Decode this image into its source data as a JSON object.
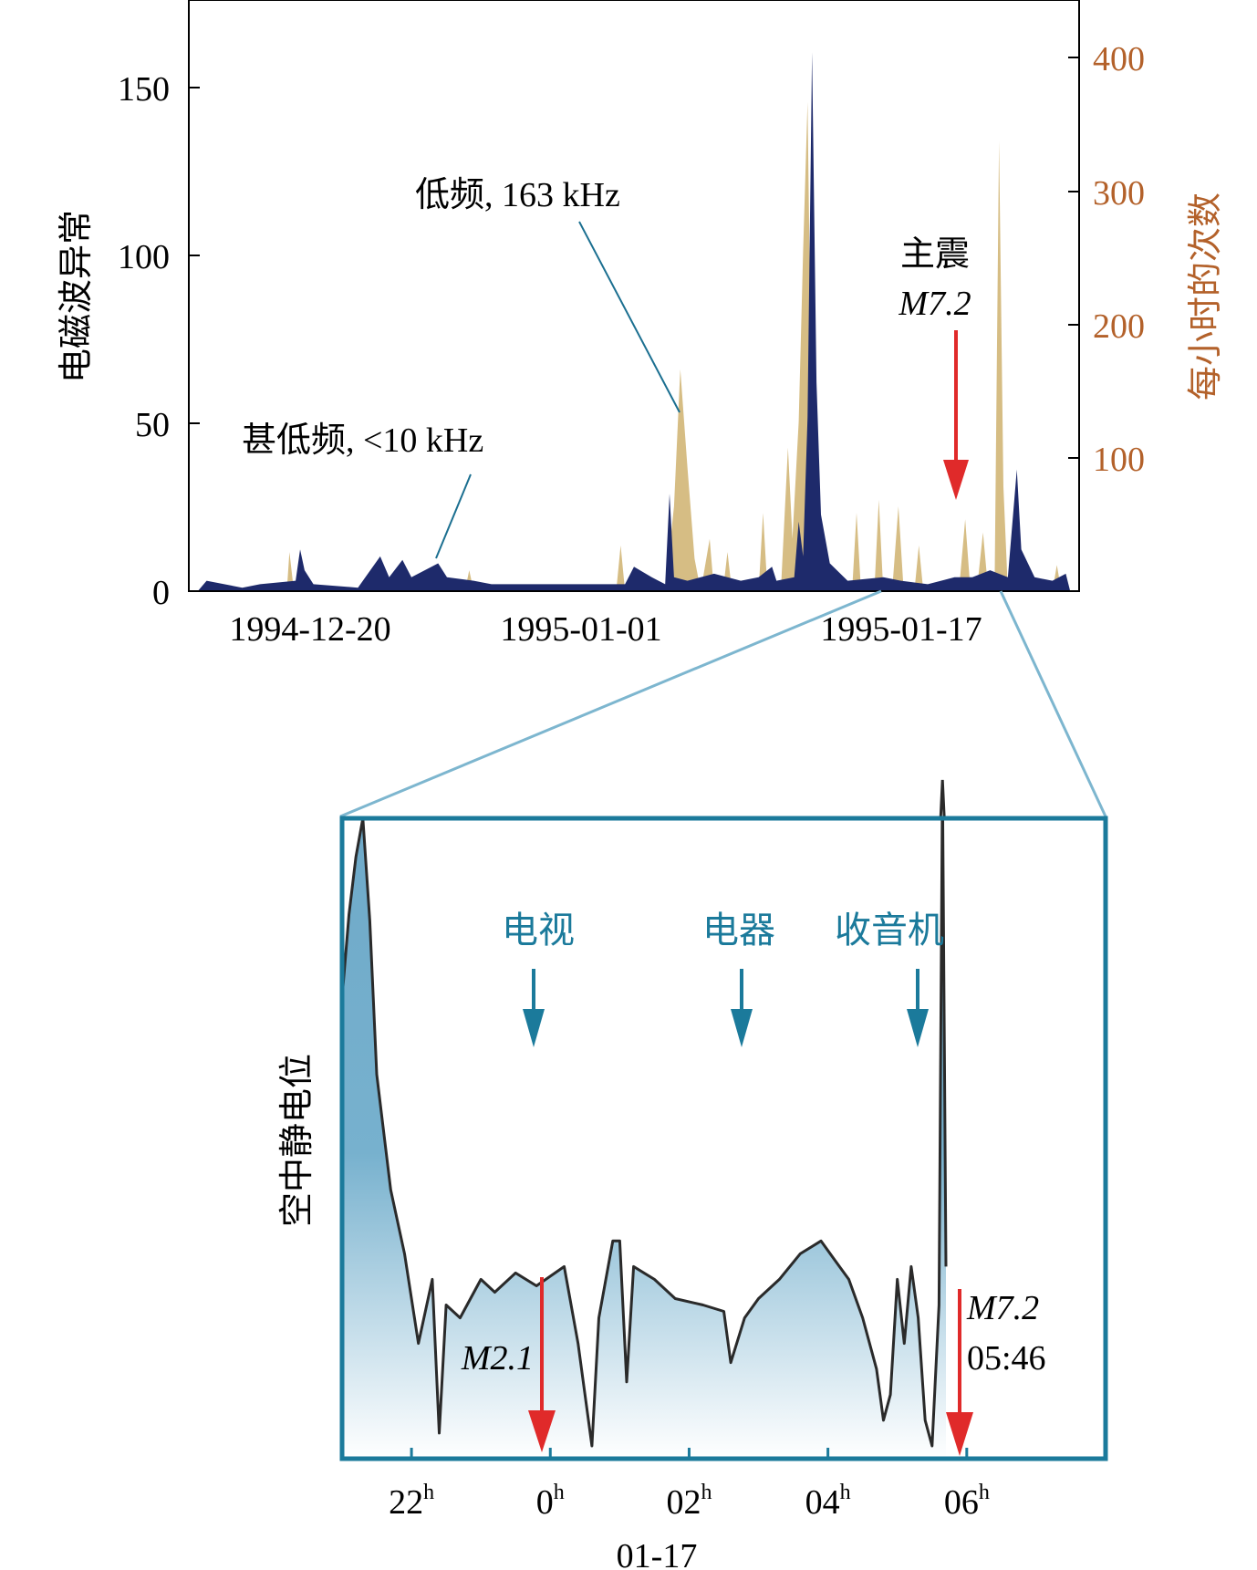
{
  "chart_data": [
    {
      "type": "area",
      "y_left": {
        "label": "电磁波异常",
        "ticks": [
          0,
          50,
          100,
          150
        ],
        "range": [
          0,
          170
        ]
      },
      "y_right": {
        "label": "每小时的次数",
        "ticks": [
          100,
          200,
          300,
          400
        ],
        "range": [
          0,
          453
        ]
      },
      "x_ticks": [
        {
          "label": "1994-12-20",
          "pos": 0.14
        },
        {
          "label": "1995-01-01",
          "pos": 0.45
        },
        {
          "label": "1995-01-17",
          "pos": 0.8
        }
      ],
      "series": [
        {
          "name": "低频, 163 kHz",
          "axis": "right",
          "color": "#d6bd84",
          "points": [
            [
              0.01,
              0
            ],
            [
              0.11,
              0
            ],
            [
              0.113,
              30
            ],
            [
              0.118,
              0
            ],
            [
              0.21,
              0
            ],
            [
              0.215,
              15
            ],
            [
              0.22,
              0
            ],
            [
              0.31,
              0
            ],
            [
              0.315,
              16
            ],
            [
              0.32,
              0
            ],
            [
              0.48,
              0
            ],
            [
              0.485,
              35
            ],
            [
              0.49,
              0
            ],
            [
              0.535,
              0
            ],
            [
              0.545,
              65
            ],
            [
              0.552,
              170
            ],
            [
              0.56,
              95
            ],
            [
              0.568,
              25
            ],
            [
              0.575,
              0
            ],
            [
              0.585,
              40
            ],
            [
              0.59,
              0
            ],
            [
              0.6,
              0
            ],
            [
              0.605,
              30
            ],
            [
              0.61,
              0
            ],
            [
              0.64,
              0
            ],
            [
              0.645,
              60
            ],
            [
              0.65,
              0
            ],
            [
              0.665,
              0
            ],
            [
              0.673,
              110
            ],
            [
              0.678,
              40
            ],
            [
              0.685,
              130
            ],
            [
              0.69,
              260
            ],
            [
              0.695,
              375
            ],
            [
              0.7,
              100
            ],
            [
              0.705,
              0
            ],
            [
              0.745,
              0
            ],
            [
              0.75,
              60
            ],
            [
              0.755,
              0
            ],
            [
              0.77,
              0
            ],
            [
              0.775,
              70
            ],
            [
              0.78,
              0
            ],
            [
              0.79,
              0
            ],
            [
              0.797,
              65
            ],
            [
              0.803,
              0
            ],
            [
              0.815,
              0
            ],
            [
              0.82,
              35
            ],
            [
              0.825,
              0
            ],
            [
              0.865,
              0
            ],
            [
              0.872,
              55
            ],
            [
              0.878,
              0
            ],
            [
              0.885,
              0
            ],
            [
              0.892,
              45
            ],
            [
              0.898,
              0
            ],
            [
              0.905,
              0
            ],
            [
              0.91,
              345
            ],
            [
              0.915,
              80
            ],
            [
              0.92,
              0
            ],
            [
              0.97,
              0
            ],
            [
              0.975,
              20
            ],
            [
              0.98,
              0
            ],
            [
              0.99,
              0
            ]
          ]
        },
        {
          "name": "甚低频, <10 kHz",
          "axis": "left",
          "color": "#1e2a6b",
          "points": [
            [
              0.01,
              0
            ],
            [
              0.02,
              3
            ],
            [
              0.06,
              1
            ],
            [
              0.08,
              2
            ],
            [
              0.12,
              3
            ],
            [
              0.125,
              12
            ],
            [
              0.13,
              6
            ],
            [
              0.14,
              2
            ],
            [
              0.19,
              1
            ],
            [
              0.215,
              10
            ],
            [
              0.225,
              4
            ],
            [
              0.24,
              9
            ],
            [
              0.25,
              4
            ],
            [
              0.28,
              8
            ],
            [
              0.29,
              4
            ],
            [
              0.32,
              3
            ],
            [
              0.34,
              2
            ],
            [
              0.4,
              2
            ],
            [
              0.45,
              2
            ],
            [
              0.49,
              2
            ],
            [
              0.5,
              7
            ],
            [
              0.52,
              4
            ],
            [
              0.535,
              2
            ],
            [
              0.54,
              28
            ],
            [
              0.545,
              4
            ],
            [
              0.56,
              3
            ],
            [
              0.59,
              5
            ],
            [
              0.62,
              3
            ],
            [
              0.64,
              4
            ],
            [
              0.655,
              7
            ],
            [
              0.66,
              3
            ],
            [
              0.68,
              4
            ],
            [
              0.685,
              20
            ],
            [
              0.69,
              10
            ],
            [
              0.695,
              50
            ],
            [
              0.7,
              155
            ],
            [
              0.705,
              60
            ],
            [
              0.71,
              22
            ],
            [
              0.72,
              8
            ],
            [
              0.74,
              3
            ],
            [
              0.78,
              4
            ],
            [
              0.8,
              3
            ],
            [
              0.83,
              2
            ],
            [
              0.86,
              4
            ],
            [
              0.88,
              4
            ],
            [
              0.9,
              6
            ],
            [
              0.92,
              4
            ],
            [
              0.93,
              35
            ],
            [
              0.935,
              12
            ],
            [
              0.95,
              4
            ],
            [
              0.97,
              3
            ],
            [
              0.985,
              5
            ],
            [
              0.99,
              0
            ]
          ]
        }
      ],
      "annotations": [
        {
          "text": "低频, 163 kHz"
        },
        {
          "text": "甚低频, <10 kHz"
        },
        {
          "text": "主震"
        },
        {
          "text": "M7.2"
        }
      ]
    },
    {
      "type": "area",
      "y_label": "空中静电位",
      "x_label": "01-17",
      "x_ticks": [
        {
          "label": "22",
          "sup": "h",
          "hour": 22
        },
        {
          "label": "0",
          "sup": "h",
          "hour": 24
        },
        {
          "label": "02",
          "sup": "h",
          "hour": 26
        },
        {
          "label": "04",
          "sup": "h",
          "hour": 28
        },
        {
          "label": "06",
          "sup": "h",
          "hour": 30
        }
      ],
      "x_range_hours": [
        21.0,
        32.0
      ],
      "y_range": [
        0,
        100
      ],
      "fill_color": "#6ea9c8",
      "line_color": "#2a2a2a",
      "series": [
        {
          "points": [
            [
              21.0,
              72
            ],
            [
              21.1,
              85
            ],
            [
              21.2,
              94
            ],
            [
              21.3,
              100
            ],
            [
              21.4,
              84
            ],
            [
              21.5,
              60
            ],
            [
              21.7,
              42
            ],
            [
              21.9,
              32
            ],
            [
              22.1,
              18
            ],
            [
              22.3,
              28
            ],
            [
              22.4,
              4
            ],
            [
              22.5,
              24
            ],
            [
              22.7,
              22
            ],
            [
              23.0,
              28
            ],
            [
              23.2,
              26
            ],
            [
              23.5,
              29
            ],
            [
              23.8,
              27
            ],
            [
              24.2,
              30
            ],
            [
              24.4,
              18
            ],
            [
              24.6,
              2
            ],
            [
              24.7,
              22
            ],
            [
              24.9,
              34
            ],
            [
              25.0,
              34
            ],
            [
              25.1,
              12
            ],
            [
              25.2,
              30
            ],
            [
              25.5,
              28
            ],
            [
              25.8,
              25
            ],
            [
              26.2,
              24
            ],
            [
              26.5,
              23
            ],
            [
              26.6,
              15
            ],
            [
              26.8,
              22
            ],
            [
              27.0,
              25
            ],
            [
              27.3,
              28
            ],
            [
              27.6,
              32
            ],
            [
              27.9,
              34
            ],
            [
              28.1,
              31
            ],
            [
              28.3,
              28
            ],
            [
              28.5,
              22
            ],
            [
              28.7,
              14
            ],
            [
              28.8,
              6
            ],
            [
              28.9,
              10
            ],
            [
              29.0,
              28
            ],
            [
              29.1,
              18
            ],
            [
              29.2,
              30
            ],
            [
              29.3,
              22
            ],
            [
              29.4,
              6
            ],
            [
              29.5,
              2
            ],
            [
              29.6,
              24
            ],
            [
              29.65,
              106
            ],
            [
              29.7,
              30
            ]
          ]
        }
      ],
      "annotations": [
        {
          "text": "电视",
          "hour": 23.9
        },
        {
          "text": "电器",
          "hour": 26.75
        },
        {
          "text": "收音机",
          "hour": 29.0
        },
        {
          "text": "M2.1",
          "hour": 23.9
        },
        {
          "text": "M7.2",
          "hour": 29.77
        },
        {
          "text": "05:46"
        }
      ]
    }
  ]
}
